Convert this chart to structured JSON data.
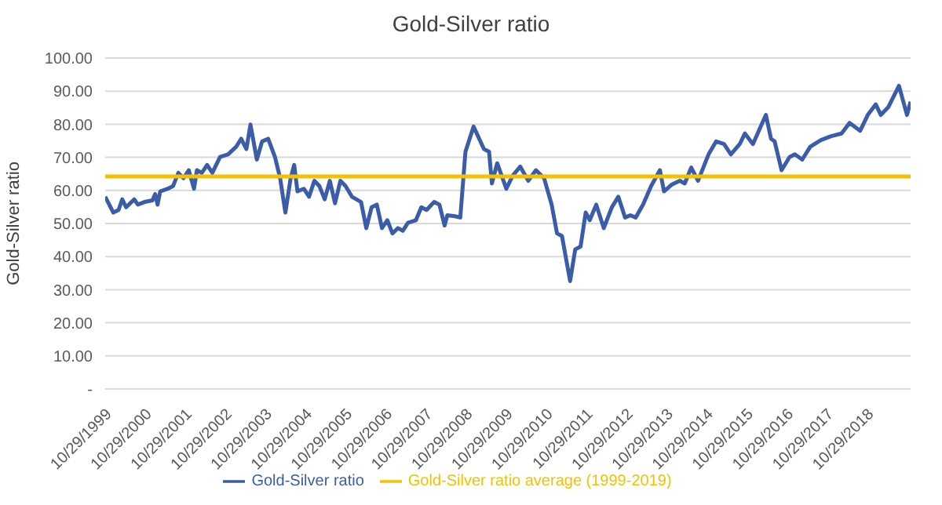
{
  "chart_data": {
    "type": "line",
    "title": "Gold-Silver ratio",
    "ylabel": "Gold-Silver ratio",
    "xlim": [
      "1999-10-29",
      "2019-11-28"
    ],
    "xticks": [
      {
        "value": "1999-10-29",
        "label": "10/29/1999"
      },
      {
        "value": "2000-10-29",
        "label": "10/29/2000"
      },
      {
        "value": "2001-10-29",
        "label": "10/29/2001"
      },
      {
        "value": "2002-10-29",
        "label": "10/29/2002"
      },
      {
        "value": "2003-10-29",
        "label": "10/29/2003"
      },
      {
        "value": "2004-10-29",
        "label": "10/29/2004"
      },
      {
        "value": "2005-10-29",
        "label": "10/29/2005"
      },
      {
        "value": "2006-10-29",
        "label": "10/29/2006"
      },
      {
        "value": "2007-10-29",
        "label": "10/29/2007"
      },
      {
        "value": "2008-10-29",
        "label": "10/29/2008"
      },
      {
        "value": "2009-10-29",
        "label": "10/29/2009"
      },
      {
        "value": "2010-10-29",
        "label": "10/29/2010"
      },
      {
        "value": "2011-10-29",
        "label": "10/29/2011"
      },
      {
        "value": "2012-10-29",
        "label": "10/29/2012"
      },
      {
        "value": "2013-10-29",
        "label": "10/29/2013"
      },
      {
        "value": "2014-10-29",
        "label": "10/29/2014"
      },
      {
        "value": "2015-10-29",
        "label": "10/29/2015"
      },
      {
        "value": "2016-10-29",
        "label": "10/29/2016"
      },
      {
        "value": "2017-10-29",
        "label": "10/29/2017"
      },
      {
        "value": "2018-10-29",
        "label": "10/29/2018"
      }
    ],
    "ylim": [
      0,
      100
    ],
    "yticks": [
      {
        "value": 0,
        "label": "-"
      },
      {
        "value": 10,
        "label": "10.00"
      },
      {
        "value": 20,
        "label": "20.00"
      },
      {
        "value": 30,
        "label": "30.00"
      },
      {
        "value": 40,
        "label": "40.00"
      },
      {
        "value": 50,
        "label": "50.00"
      },
      {
        "value": 60,
        "label": "60.00"
      },
      {
        "value": 70,
        "label": "70.00"
      },
      {
        "value": 80,
        "label": "80.00"
      },
      {
        "value": 90,
        "label": "90.00"
      },
      {
        "value": 100,
        "label": "100.00"
      }
    ],
    "grid": "y",
    "legend": "bottom",
    "marker": "none",
    "line_style": "solid",
    "series": [
      {
        "name": "Gold-Silver ratio",
        "color": "#3b5ca8",
        "x": [
          "1999-10-29",
          "2000-01-11",
          "2000-02-28",
          "2000-04-01",
          "2000-05-07",
          "2000-07-19",
          "2000-08-21",
          "2000-10-22",
          "2001-01-01",
          "2001-01-26",
          "2001-02-17",
          "2001-03-13",
          "2001-05-21",
          "2001-07-08",
          "2001-08-25",
          "2001-10-11",
          "2001-11-28",
          "2002-01-15",
          "2002-02-10",
          "2002-03-27",
          "2002-05-14",
          "2002-07-01",
          "2002-09-09",
          "2002-11-21",
          "2003-02-03",
          "2003-03-20",
          "2003-05-07",
          "2003-06-13",
          "2003-08-10",
          "2003-09-27",
          "2003-11-21",
          "2004-01-22",
          "2004-03-09",
          "2004-04-26",
          "2004-06-13",
          "2004-07-15",
          "2004-08-14",
          "2004-10-11",
          "2004-11-28",
          "2005-01-15",
          "2005-03-02",
          "2005-04-19",
          "2005-06-05",
          "2005-07-22",
          "2005-09-09",
          "2005-10-26",
          "2005-12-23",
          "2006-03-16",
          "2006-05-03",
          "2006-06-20",
          "2006-08-07",
          "2006-09-23",
          "2006-11-10",
          "2006-12-27",
          "2007-02-14",
          "2007-04-01",
          "2007-05-17",
          "2007-07-29",
          "2007-09-16",
          "2007-11-03",
          "2008-01-11",
          "2008-02-28",
          "2008-04-15",
          "2008-05-10",
          "2008-07-19",
          "2008-09-05",
          "2008-10-22",
          "2009-01-04",
          "2009-04-08",
          "2009-05-25",
          "2009-06-20",
          "2009-08-07",
          "2009-10-29",
          "2009-12-27",
          "2010-03-05",
          "2010-05-17",
          "2010-07-26",
          "2010-10-08",
          "2010-12-16",
          "2011-02-03",
          "2011-03-20",
          "2011-06-02",
          "2011-07-19",
          "2011-09-05",
          "2011-10-22",
          "2011-11-28",
          "2012-01-26",
          "2012-04-04",
          "2012-06-16",
          "2012-08-14",
          "2012-10-15",
          "2012-12-02",
          "2013-01-19",
          "2013-03-27",
          "2013-06-09",
          "2013-08-28",
          "2013-10-04",
          "2013-12-16",
          "2014-02-25",
          "2014-04-11",
          "2014-06-09",
          "2014-08-10",
          "2014-11-14",
          "2015-01-22",
          "2015-04-04",
          "2015-06-05",
          "2015-08-25",
          "2015-10-11",
          "2015-12-23",
          "2016-04-19",
          "2016-06-05",
          "2016-07-08",
          "2016-09-09",
          "2016-11-21",
          "2017-01-08",
          "2017-03-16",
          "2017-05-28",
          "2017-09-02",
          "2017-12-05",
          "2018-03-09",
          "2018-05-21",
          "2018-08-25",
          "2018-11-03",
          "2019-01-15",
          "2019-03-02",
          "2019-05-10",
          "2019-08-14",
          "2019-10-26",
          "2019-11-28"
        ],
        "values": [
          58.1,
          53.3,
          54.1,
          57.3,
          54.9,
          57.3,
          55.7,
          56.5,
          57.0,
          58.9,
          55.7,
          59.7,
          60.5,
          61.3,
          65.3,
          63.7,
          66.1,
          60.5,
          66.1,
          65.3,
          67.7,
          65.3,
          70.1,
          70.9,
          73.2,
          75.6,
          72.5,
          79.9,
          69.3,
          74.8,
          75.6,
          70.1,
          63.7,
          53.3,
          63.7,
          67.7,
          59.7,
          60.5,
          58.1,
          62.9,
          61.3,
          57.3,
          62.9,
          56.1,
          62.9,
          61.3,
          58.1,
          56.5,
          48.6,
          54.9,
          55.7,
          48.6,
          51.0,
          47.0,
          48.6,
          47.8,
          50.2,
          51.0,
          54.9,
          54.1,
          56.5,
          55.7,
          49.4,
          52.5,
          52.2,
          51.8,
          71.7,
          79.3,
          72.5,
          71.7,
          62.1,
          68.2,
          60.5,
          64.5,
          67.2,
          62.9,
          66.1,
          63.7,
          55.7,
          47.0,
          46.2,
          32.6,
          42.2,
          43.0,
          53.3,
          51.0,
          55.7,
          48.6,
          54.9,
          58.1,
          51.8,
          52.5,
          51.8,
          55.7,
          61.3,
          66.1,
          59.7,
          61.8,
          62.9,
          62.1,
          66.9,
          62.9,
          70.9,
          74.8,
          74.0,
          70.9,
          74.0,
          77.2,
          74.0,
          82.8,
          75.6,
          74.8,
          66.1,
          70.1,
          70.9,
          69.3,
          73.2,
          75.2,
          76.4,
          77.2,
          80.4,
          78.0,
          82.8,
          86.0,
          82.8,
          85.2,
          91.6,
          82.8,
          86.8
        ]
      },
      {
        "name": "Gold-Silver ratio average (1999-2019)",
        "color": "#f2c200",
        "x": [
          "1999-10-29",
          "2019-11-28"
        ],
        "values": [
          64.2,
          64.2
        ]
      }
    ]
  }
}
